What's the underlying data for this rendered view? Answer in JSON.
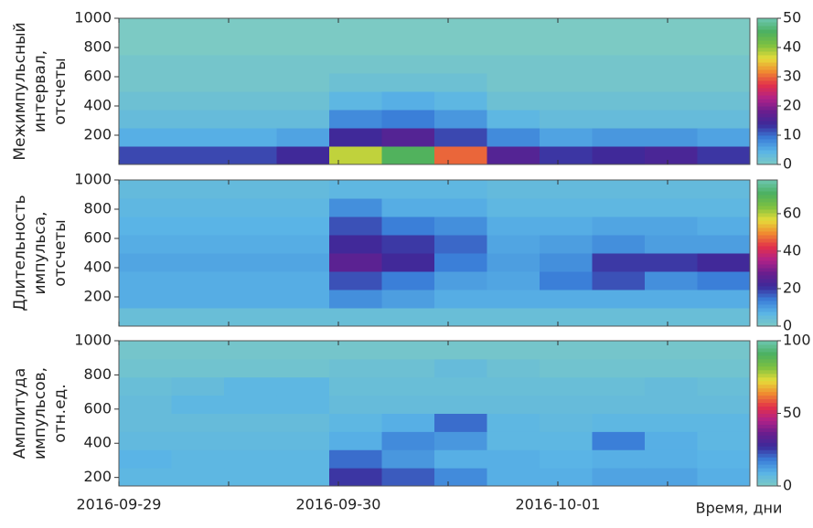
{
  "chart_data": [
    {
      "type": "heatmap",
      "ylabel": [
        "Межимпульсный",
        "интервал,",
        "отсчеты"
      ],
      "ylim": [
        0,
        1000
      ],
      "yticks": [
        200,
        400,
        600,
        800,
        1000
      ],
      "zlim": [
        0,
        50
      ],
      "zticks": [
        0,
        10,
        20,
        30,
        40,
        50
      ],
      "colormap": [
        "#7ccac4",
        "#5ab4e6",
        "#3a7ed8",
        "#3c2a9a",
        "#6a1e8e",
        "#b02288",
        "#e2304a",
        "#f08a30",
        "#e6dc3a",
        "#7cc040",
        "#4cb060",
        "#6cc6b0"
      ],
      "z": [
        [
          12,
          12,
          12,
          14,
          38,
          45,
          30,
          16,
          13,
          14,
          15,
          13
        ],
        [
          5,
          5,
          5,
          6,
          14,
          16,
          12,
          8,
          6,
          7,
          7,
          6
        ],
        [
          3,
          3,
          3,
          3,
          8,
          9,
          7,
          4,
          3,
          3,
          3,
          3
        ],
        [
          2,
          2,
          2,
          2,
          4,
          5,
          4,
          2,
          2,
          2,
          2,
          2
        ],
        [
          1,
          1,
          1,
          1,
          2,
          2,
          2,
          1,
          1,
          1,
          1,
          1
        ],
        [
          1,
          1,
          1,
          1,
          1,
          1,
          1,
          1,
          1,
          1,
          1,
          1
        ],
        [
          0,
          0,
          0,
          0,
          0,
          0,
          0,
          0,
          0,
          0,
          0,
          0
        ],
        [
          0,
          0,
          0,
          0,
          0,
          0,
          0,
          0,
          0,
          0,
          0,
          0
        ]
      ]
    },
    {
      "type": "heatmap",
      "ylabel": [
        "Длительность",
        "импульса,",
        "отсчеты"
      ],
      "ylim": [
        0,
        1000
      ],
      "yticks": [
        200,
        400,
        600,
        800,
        1000
      ],
      "zlim": [
        0,
        78
      ],
      "zticks": [
        0,
        20,
        40,
        60
      ],
      "colormap": [
        "#7ccac4",
        "#5ab4e6",
        "#3a7ed8",
        "#3c2a9a",
        "#6a1e8e",
        "#b02288",
        "#e2304a",
        "#f08a30",
        "#e6dc3a",
        "#7cc040",
        "#4cb060",
        "#6cc6b0"
      ],
      "z": [
        [
          4,
          4,
          4,
          4,
          4,
          4,
          4,
          4,
          4,
          4,
          4,
          4
        ],
        [
          8,
          8,
          8,
          8,
          12,
          10,
          8,
          8,
          8,
          8,
          8,
          8
        ],
        [
          8,
          8,
          8,
          8,
          18,
          14,
          10,
          9,
          14,
          18,
          12,
          14
        ],
        [
          9,
          9,
          9,
          9,
          26,
          22,
          14,
          10,
          12,
          20,
          20,
          22
        ],
        [
          8,
          8,
          8,
          8,
          22,
          20,
          16,
          9,
          10,
          12,
          10,
          10
        ],
        [
          7,
          7,
          7,
          7,
          18,
          14,
          12,
          8,
          8,
          9,
          9,
          8
        ],
        [
          6,
          6,
          6,
          6,
          12,
          8,
          8,
          6,
          6,
          6,
          6,
          6
        ],
        [
          5,
          5,
          5,
          5,
          6,
          6,
          6,
          5,
          5,
          5,
          5,
          5
        ]
      ]
    },
    {
      "type": "heatmap",
      "ylabel": [
        "Амплитуда",
        "импульсов,",
        "отн.ед."
      ],
      "ylim": [
        150,
        1000
      ],
      "yticks": [
        200,
        400,
        600,
        800,
        1000
      ],
      "zlim": [
        0,
        100
      ],
      "zticks": [
        0,
        50,
        100
      ],
      "colormap": [
        "#7ccac4",
        "#5ab4e6",
        "#3a7ed8",
        "#3c2a9a",
        "#6a1e8e",
        "#b02288",
        "#e2304a",
        "#f08a30",
        "#e6dc3a",
        "#7cc040",
        "#4cb060",
        "#6cc6b0"
      ],
      "z": [
        [
          8,
          8,
          8,
          8,
          26,
          22,
          16,
          10,
          10,
          12,
          12,
          10
        ],
        [
          9,
          8,
          8,
          8,
          20,
          14,
          10,
          10,
          9,
          10,
          10,
          9
        ],
        [
          7,
          7,
          7,
          7,
          10,
          16,
          14,
          8,
          8,
          18,
          10,
          8
        ],
        [
          6,
          6,
          6,
          6,
          8,
          10,
          20,
          8,
          7,
          8,
          8,
          8
        ],
        [
          6,
          8,
          8,
          8,
          6,
          6,
          6,
          6,
          6,
          6,
          6,
          6
        ],
        [
          5,
          6,
          8,
          8,
          5,
          5,
          5,
          5,
          5,
          5,
          6,
          5
        ],
        [
          3,
          3,
          3,
          3,
          4,
          4,
          6,
          4,
          3,
          3,
          3,
          3
        ],
        [
          2,
          2,
          2,
          2,
          2,
          2,
          2,
          2,
          2,
          2,
          2,
          2
        ]
      ],
      "xlabel": "Время, дни",
      "xlim": [
        0,
        2.875
      ],
      "xticks": [
        {
          "value": 0,
          "label": "2016-09-29"
        },
        {
          "value": 1,
          "label": "2016-09-30"
        },
        {
          "value": 2,
          "label": "2016-10-01"
        }
      ],
      "xminor": [
        0.5,
        1.5,
        2.5
      ]
    }
  ]
}
